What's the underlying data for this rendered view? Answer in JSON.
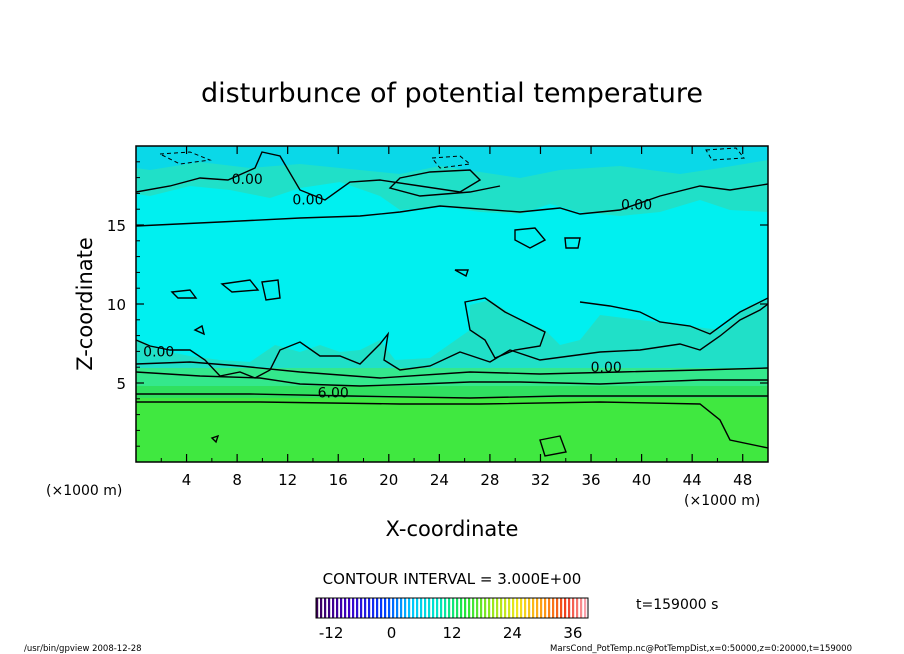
{
  "chart_data": {
    "type": "heatmap",
    "title": "disturbunce of potential temperature",
    "xlabel": "X-coordinate",
    "ylabel": "Z-coordinate",
    "x_unit_left": "(×1000 m)",
    "x_unit_right": "(×1000 m)",
    "xlim": [
      0,
      50
    ],
    "ylim": [
      0,
      20
    ],
    "x_ticks": [
      4,
      8,
      12,
      16,
      20,
      24,
      28,
      32,
      36,
      40,
      44,
      48
    ],
    "y_ticks": [
      5,
      10,
      15
    ],
    "contour_labels": [
      {
        "text": "0.00",
        "x": 8.8,
        "z": 17.9
      },
      {
        "text": "0.00",
        "x": 13.6,
        "z": 16.6
      },
      {
        "text": "0.00",
        "x": 39.6,
        "z": 16.3
      },
      {
        "text": "0.00",
        "x": 1.8,
        "z": 7.0
      },
      {
        "text": "0.00",
        "x": 37.2,
        "z": 6.0
      },
      {
        "text": "6.00",
        "x": 15.6,
        "z": 4.4
      }
    ],
    "contour_interval": "CONTOUR INTERVAL = 3.000E+00",
    "time_label": "t=159000 s",
    "colorbar": {
      "min": -15,
      "max": 39,
      "ticks": [
        -12,
        0,
        12,
        24,
        36
      ]
    },
    "colors": {
      "cyan_region": "#00f0f0",
      "light_region": "#20e0c8",
      "lower_green": "#40e840",
      "line": "#000000"
    }
  },
  "footer": {
    "left": "/usr/bin/gpview   2008-12-28",
    "right": "MarsCond_PotTemp.nc@PotTempDist,x=0:50000,z=0:20000,t=159000"
  }
}
